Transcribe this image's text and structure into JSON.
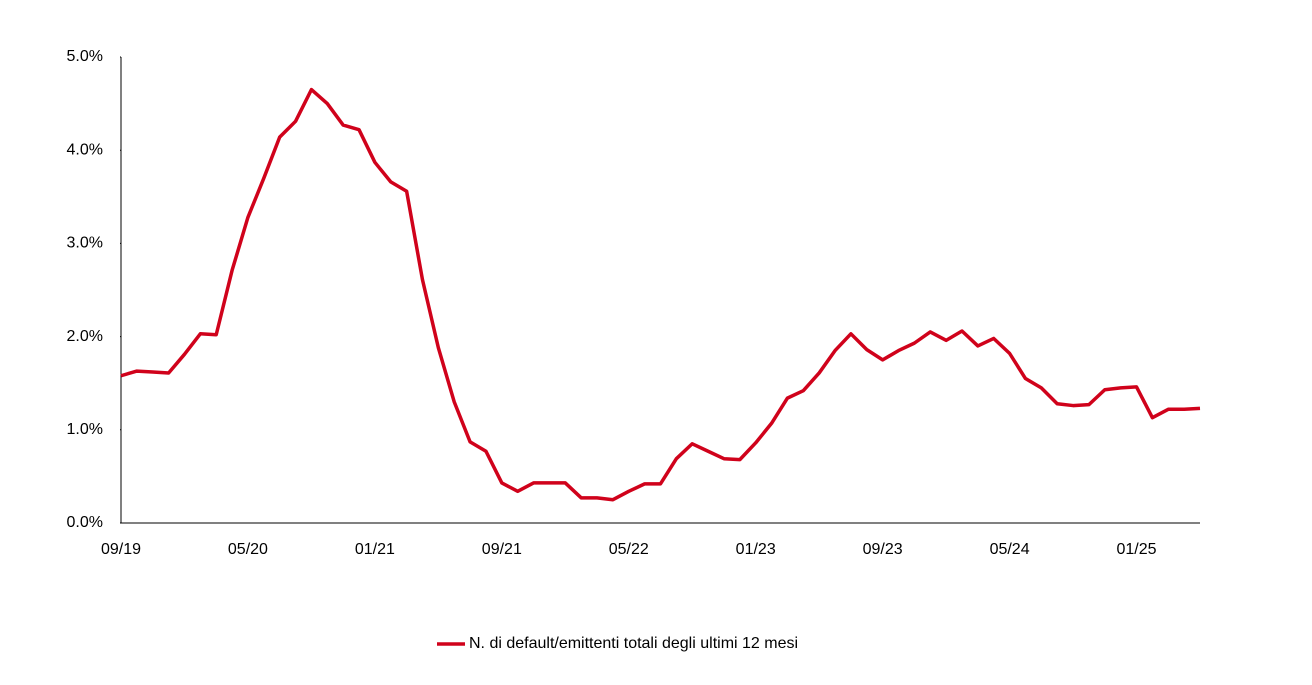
{
  "chart_data": {
    "type": "line",
    "categories": [
      "09/19",
      null,
      null,
      null,
      null,
      null,
      null,
      null,
      "05/20",
      null,
      null,
      null,
      null,
      null,
      null,
      null,
      "01/21",
      null,
      null,
      null,
      null,
      null,
      null,
      null,
      "09/21",
      null,
      null,
      null,
      null,
      null,
      null,
      null,
      "05/22",
      null,
      null,
      null,
      null,
      null,
      null,
      null,
      "01/23",
      null,
      null,
      null,
      null,
      null,
      null,
      null,
      "09/23",
      null,
      null,
      null,
      null,
      null,
      null,
      null,
      "05/24",
      null,
      null,
      null,
      null,
      null,
      null,
      null,
      "01/25",
      null,
      null,
      null,
      null
    ],
    "series": [
      {
        "name": "N. di default/emittenti totali degli ultimi 12 mesi",
        "color": "#d0021b",
        "values": [
          1.58,
          1.63,
          1.62,
          1.61,
          1.81,
          2.03,
          2.02,
          2.71,
          3.28,
          3.7,
          4.14,
          4.31,
          4.65,
          4.5,
          4.27,
          4.22,
          3.87,
          3.66,
          3.56,
          2.61,
          1.88,
          1.3,
          0.87,
          0.77,
          0.43,
          0.34,
          0.43,
          0.43,
          0.43,
          0.27,
          0.27,
          0.25,
          0.34,
          0.42,
          0.42,
          0.69,
          0.85,
          0.77,
          0.69,
          0.68,
          0.86,
          1.07,
          1.34,
          1.42,
          1.61,
          1.85,
          2.03,
          1.86,
          1.75,
          1.85,
          1.93,
          2.05,
          1.96,
          2.06,
          1.9,
          1.98,
          1.82,
          1.55,
          1.45,
          1.28,
          1.26,
          1.27,
          1.43,
          1.45,
          1.46,
          1.13,
          1.22,
          1.22,
          1.23
        ]
      }
    ],
    "ylim": [
      0,
      5
    ],
    "yticks": [
      {
        "value": 0,
        "label": "0.0%"
      },
      {
        "value": 1,
        "label": "1.0%"
      },
      {
        "value": 2,
        "label": "2.0%"
      },
      {
        "value": 3,
        "label": "3.0%"
      },
      {
        "value": 4,
        "label": "4.0%"
      },
      {
        "value": 5,
        "label": "5.0%"
      }
    ],
    "grid": false,
    "legend": "bottom"
  }
}
